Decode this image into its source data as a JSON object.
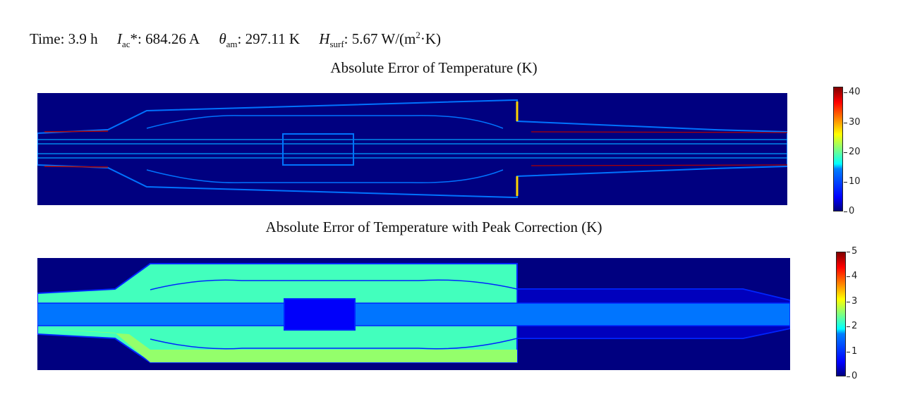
{
  "header": {
    "time_label": "Time:",
    "time_value": "3.9 h",
    "iac_symbol": "I",
    "iac_sub": "ac",
    "iac_suffix": "*:",
    "iac_value": "684.26 A",
    "theta_symbol": "θ",
    "theta_sub": "am",
    "theta_suffix": ":",
    "theta_value": "297.11 K",
    "h_symbol": "H",
    "h_sub": "surf",
    "h_suffix": ":",
    "h_value": "5.67 W/(m",
    "h_sup": "2",
    "h_tail": "·K)"
  },
  "chart_data": [
    {
      "type": "heatmap",
      "title": "Absolute Error of Temperature (K)",
      "colormap": "jet",
      "vmin": 0,
      "vmax": 42,
      "colorbar_ticks": [
        "0",
        "10",
        "20",
        "30",
        "40"
      ],
      "background_value": 0,
      "features": [
        {
          "region": "outer contour edges",
          "value": 10
        },
        {
          "region": "center conductor lines",
          "value": 12
        },
        {
          "region": "top/bottom outer boundary hot spots",
          "value": 40
        },
        {
          "region": "step edge near right shoulder",
          "value": 28
        }
      ]
    },
    {
      "type": "heatmap",
      "title": "Absolute Error of Temperature with Peak Correction (K)",
      "colormap": "jet",
      "vmin": 0,
      "vmax": 5,
      "colorbar_ticks": [
        "0",
        "1",
        "2",
        "3",
        "4",
        "5"
      ],
      "background_value": 0,
      "features": [
        {
          "region": "insulation body",
          "value": 2.2
        },
        {
          "region": "lower insulation band",
          "value": 2.6
        },
        {
          "region": "inner conductor channel",
          "value": 1.2
        },
        {
          "region": "center connector",
          "value": 0.6
        },
        {
          "region": "right cable section",
          "value": 0.3
        },
        {
          "region": "boundaries",
          "value": 0.8
        }
      ]
    }
  ]
}
